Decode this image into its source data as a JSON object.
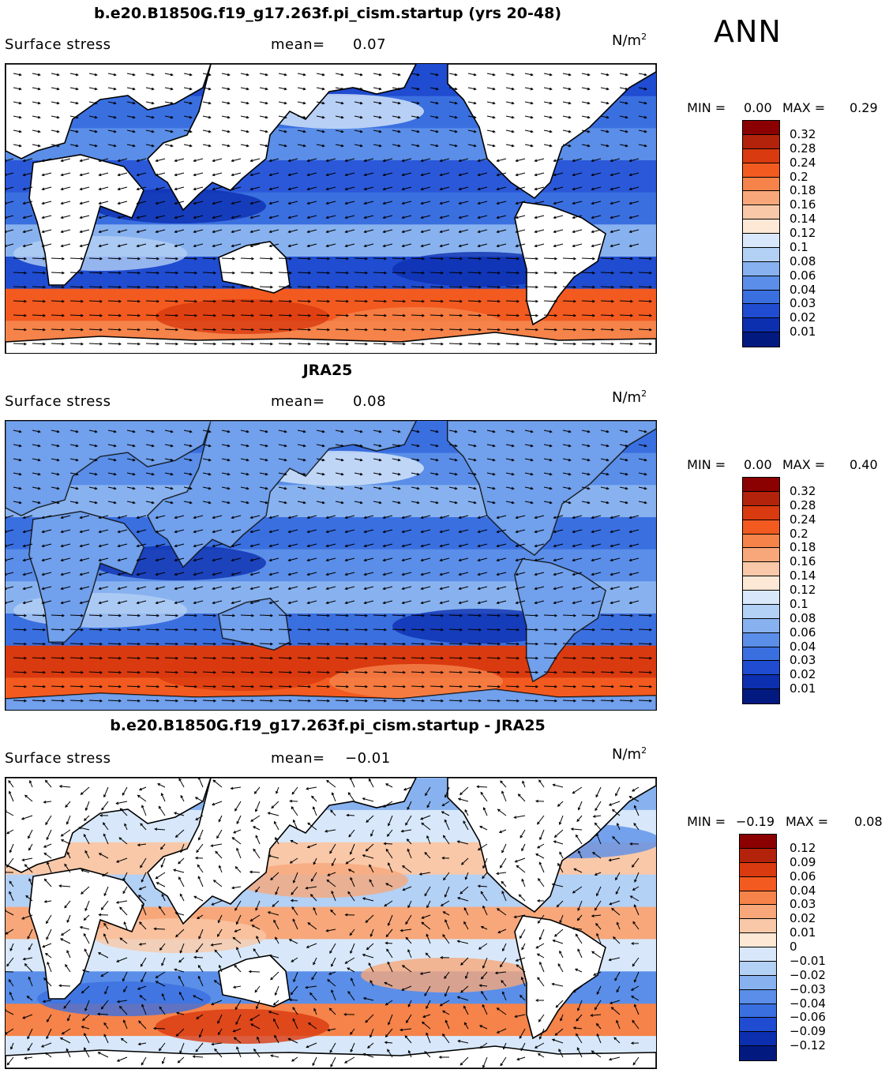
{
  "season": "ANN",
  "panels": [
    {
      "id": "model",
      "title": "b.e20.B1850G.f19_g17.263f.pi_cism.startup (yrs 20-48)",
      "variable": "Surface stress",
      "mean_label": "mean=",
      "mean_value": "0.07",
      "units": "N/m",
      "units_exp": "2",
      "min_label": "MIN =",
      "min_value": "0.00",
      "max_label": "MAX =",
      "max_value": "0.29",
      "colorbar": {
        "labels": [
          "0.32",
          "0.28",
          "0.24",
          "0.2",
          "0.18",
          "0.16",
          "0.14",
          "0.12",
          "0.1",
          "0.08",
          "0.06",
          "0.04",
          "0.03",
          "0.02",
          "0.01"
        ],
        "colors": [
          "#8b0000",
          "#b3220a",
          "#d93a0f",
          "#f25a20",
          "#f5834a",
          "#f7a77a",
          "#f9c8a8",
          "#fde8d6",
          "#d8e8fa",
          "#b3d0f5",
          "#88b2ef",
          "#5a8ee8",
          "#3a6fe0",
          "#1f4cd0",
          "#0c2fb0",
          "#021a80"
        ]
      }
    },
    {
      "id": "obs",
      "title": "JRA25",
      "variable": "Surface stress",
      "mean_label": "mean=",
      "mean_value": "0.08",
      "units": "N/m",
      "units_exp": "2",
      "min_label": "MIN =",
      "min_value": "0.00",
      "max_label": "MAX =",
      "max_value": "0.40",
      "colorbar": {
        "labels": [
          "0.32",
          "0.28",
          "0.24",
          "0.2",
          "0.18",
          "0.16",
          "0.14",
          "0.12",
          "0.1",
          "0.08",
          "0.06",
          "0.04",
          "0.03",
          "0.02",
          "0.01"
        ],
        "colors": [
          "#8b0000",
          "#b3220a",
          "#d93a0f",
          "#f25a20",
          "#f5834a",
          "#f7a77a",
          "#f9c8a8",
          "#fde8d6",
          "#d8e8fa",
          "#b3d0f5",
          "#88b2ef",
          "#5a8ee8",
          "#3a6fe0",
          "#1f4cd0",
          "#0c2fb0",
          "#021a80"
        ]
      }
    },
    {
      "id": "diff",
      "title": "b.e20.B1850G.f19_g17.263f.pi_cism.startup - JRA25",
      "variable": "Surface stress",
      "mean_label": "mean=",
      "mean_value": "−0.01",
      "units": "N/m",
      "units_exp": "2",
      "min_label": "MIN =",
      "min_value": "−0.19",
      "max_label": "MAX =",
      "max_value": "0.08",
      "colorbar": {
        "labels": [
          "0.12",
          "0.09",
          "0.06",
          "0.04",
          "0.03",
          "0.02",
          "0.01",
          "0",
          "−0.01",
          "−0.02",
          "−0.03",
          "−0.04",
          "−0.06",
          "−0.09",
          "−0.12"
        ],
        "colors": [
          "#8b0000",
          "#b3220a",
          "#d93a0f",
          "#f25a20",
          "#f5834a",
          "#f7a77a",
          "#f9c8a8",
          "#fde8d6",
          "#d8e8fa",
          "#b3d0f5",
          "#88b2ef",
          "#5a8ee8",
          "#3a6fe0",
          "#1f4cd0",
          "#0c2fb0",
          "#021a80"
        ]
      }
    }
  ]
}
